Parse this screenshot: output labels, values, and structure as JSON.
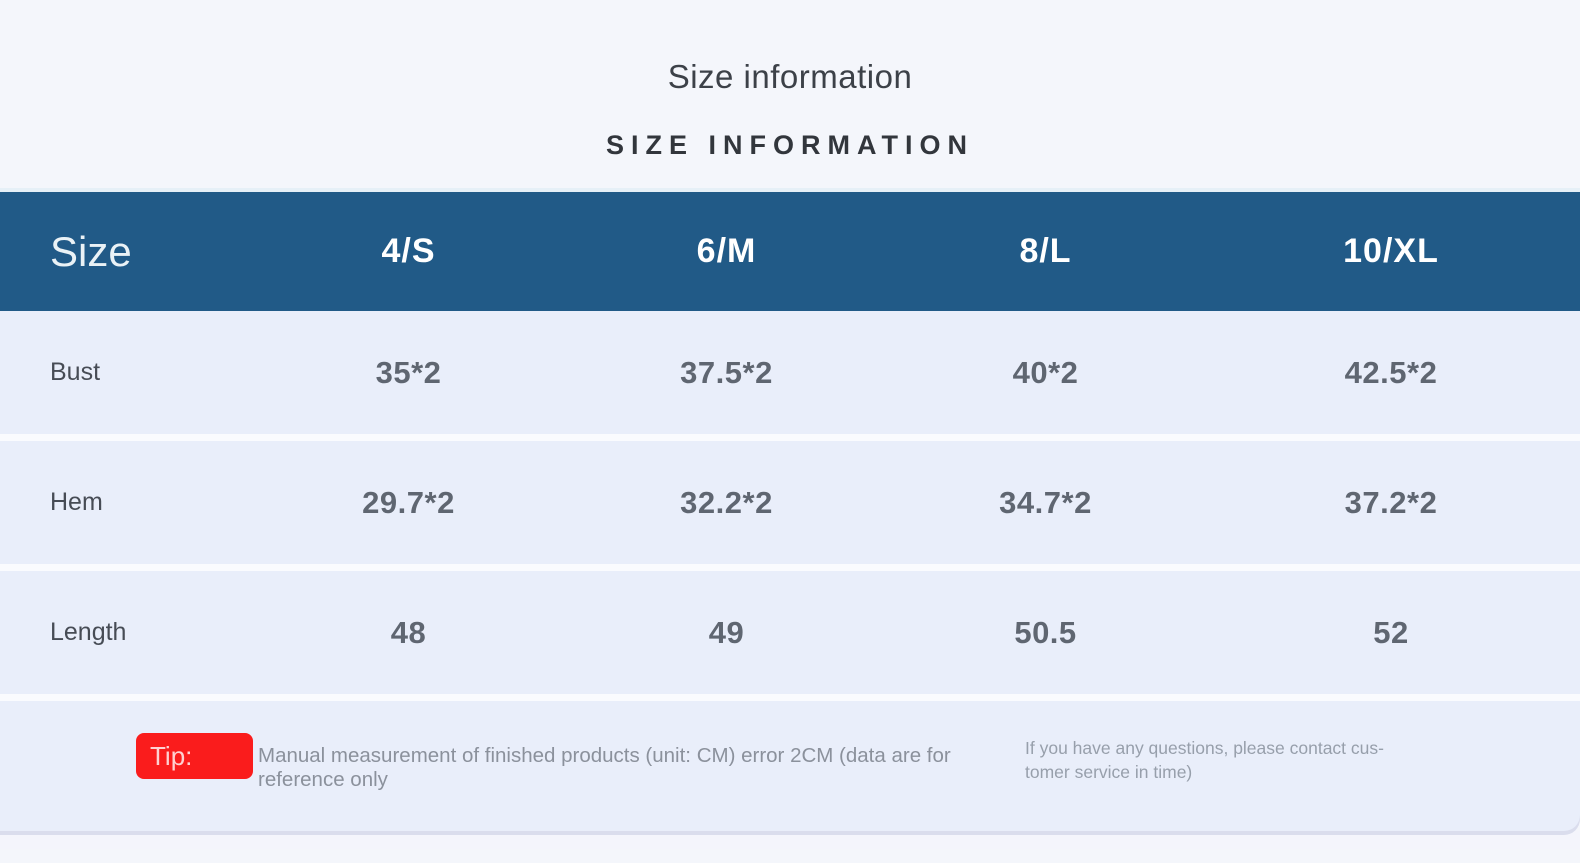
{
  "header": {
    "title": "Size information",
    "subtitle": "SIZE INFORMATION"
  },
  "table": {
    "header": {
      "label": "Size",
      "columns": [
        "4/S",
        "6/M",
        "8/L",
        "10/XL"
      ]
    },
    "rows": [
      {
        "label": "Bust",
        "values": [
          "35*2",
          "37.5*2",
          "40*2",
          "42.5*2"
        ]
      },
      {
        "label": "Hem",
        "values": [
          "29.7*2",
          "32.2*2",
          "34.7*2",
          "37.2*2"
        ]
      },
      {
        "label": "Length",
        "values": [
          "48",
          "49",
          "50.5",
          "52"
        ]
      }
    ],
    "unit": "CM"
  },
  "tip": {
    "badge": "Tip:",
    "text": "Manual measurement of finished products (unit: CM) error 2CM (data are for reference only",
    "note_line1": "If you have any questions, please contact cus-",
    "note_line2": "tomer service in time)"
  },
  "colors": {
    "page_background": "#f4f6fb",
    "table_header_background": "#215a87",
    "table_header_text": "#ffffff",
    "row_background": "#e9eefa",
    "row_divider": "#fafbfe",
    "value_text": "#5f6671",
    "label_text": "#474c55",
    "tip_badge_background": "#fa1c1c",
    "tip_text": "#8b919c"
  }
}
